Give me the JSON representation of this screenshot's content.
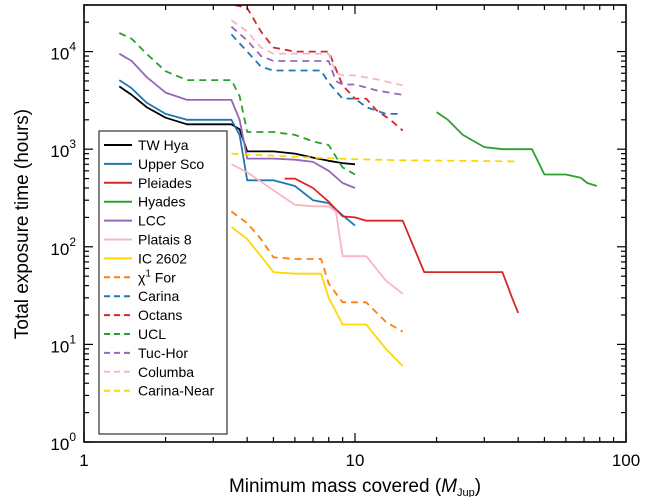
{
  "chart_data": {
    "type": "line",
    "title": "",
    "xlabel": "Minimum mass covered",
    "xlabel_symbol": "M",
    "xlabel_subscript": "Jup",
    "ylabel": "Total exposure time (hours)",
    "x_scale": "log",
    "y_scale": "log",
    "xlim": [
      1,
      100
    ],
    "ylim": [
      1,
      30000
    ],
    "x_ticks": [
      {
        "value": 1,
        "label": "1"
      },
      {
        "value": 10,
        "label": "10"
      },
      {
        "value": 100,
        "label": "100"
      }
    ],
    "y_ticks": [
      {
        "value": 1,
        "base": "10",
        "exp": "0"
      },
      {
        "value": 10,
        "base": "10",
        "exp": "1"
      },
      {
        "value": 100,
        "base": "10",
        "exp": "2"
      },
      {
        "value": 1000,
        "base": "10",
        "exp": "3"
      },
      {
        "value": 10000,
        "base": "10",
        "exp": "4"
      }
    ],
    "grid": false,
    "legend_position": "lower-left",
    "series": [
      {
        "name": "TW Hya",
        "color": "#000000",
        "dash": "solid",
        "points": [
          [
            1.35,
            4400
          ],
          [
            1.5,
            3600
          ],
          [
            1.7,
            2700
          ],
          [
            2.0,
            2100
          ],
          [
            2.4,
            1800
          ],
          [
            3.0,
            1800
          ],
          [
            3.5,
            1800
          ],
          [
            3.75,
            1600
          ],
          [
            4.0,
            950
          ],
          [
            5.0,
            950
          ],
          [
            6.0,
            900
          ],
          [
            7.0,
            820
          ],
          [
            8.0,
            760
          ],
          [
            9.0,
            720
          ],
          [
            10.0,
            700
          ]
        ]
      },
      {
        "name": "Upper Sco",
        "color": "#1f77b4",
        "dash": "solid",
        "points": [
          [
            1.35,
            5100
          ],
          [
            1.5,
            4200
          ],
          [
            1.7,
            3000
          ],
          [
            2.0,
            2300
          ],
          [
            2.4,
            2000
          ],
          [
            3.0,
            2000
          ],
          [
            3.5,
            2000
          ],
          [
            3.75,
            1400
          ],
          [
            4.0,
            480
          ],
          [
            4.5,
            480
          ],
          [
            5.0,
            480
          ],
          [
            6.0,
            420
          ],
          [
            7.0,
            300
          ],
          [
            8.0,
            280
          ],
          [
            9.0,
            210
          ],
          [
            10.0,
            165
          ]
        ]
      },
      {
        "name": "Pleiades",
        "color": "#d62728",
        "dash": "solid",
        "points": [
          [
            5.5,
            500
          ],
          [
            6.0,
            500
          ],
          [
            7.0,
            400
          ],
          [
            8.0,
            290
          ],
          [
            9.0,
            205
          ],
          [
            10.0,
            200
          ],
          [
            11.0,
            185
          ],
          [
            15.0,
            185
          ],
          [
            18.0,
            55
          ],
          [
            30.0,
            55
          ],
          [
            35.0,
            55
          ],
          [
            38.0,
            30
          ],
          [
            40.0,
            21
          ]
        ]
      },
      {
        "name": "Hyades",
        "color": "#2ca02c",
        "dash": "solid",
        "points": [
          [
            20.0,
            2400
          ],
          [
            22.0,
            2000
          ],
          [
            25.0,
            1400
          ],
          [
            30.0,
            1050
          ],
          [
            35.0,
            1000
          ],
          [
            45.0,
            1000
          ],
          [
            50.0,
            550
          ],
          [
            60.0,
            550
          ],
          [
            68.0,
            510
          ],
          [
            72.0,
            450
          ],
          [
            78.0,
            420
          ]
        ]
      },
      {
        "name": "LCC",
        "color": "#9467bd",
        "dash": "solid",
        "points": [
          [
            1.35,
            9500
          ],
          [
            1.5,
            8000
          ],
          [
            1.7,
            5500
          ],
          [
            2.0,
            3800
          ],
          [
            2.4,
            3200
          ],
          [
            3.0,
            3200
          ],
          [
            3.5,
            3200
          ],
          [
            3.75,
            2000
          ],
          [
            4.0,
            800
          ],
          [
            5.0,
            800
          ],
          [
            6.0,
            780
          ],
          [
            7.0,
            740
          ],
          [
            8.0,
            600
          ],
          [
            9.0,
            450
          ],
          [
            10.0,
            400
          ]
        ]
      },
      {
        "name": "Platais 8",
        "color": "#f7b6c2",
        "dash": "solid",
        "points": [
          [
            3.5,
            700
          ],
          [
            4.0,
            580
          ],
          [
            5.0,
            380
          ],
          [
            6.0,
            270
          ],
          [
            7.0,
            260
          ],
          [
            8.0,
            260
          ],
          [
            8.5,
            230
          ],
          [
            9.0,
            80
          ],
          [
            10.0,
            80
          ],
          [
            11.0,
            80
          ],
          [
            13.0,
            45
          ],
          [
            15.0,
            33
          ]
        ]
      },
      {
        "name": "IC 2602",
        "color": "#ffd700",
        "dash": "solid",
        "points": [
          [
            3.5,
            160
          ],
          [
            4.0,
            120
          ],
          [
            4.5,
            80
          ],
          [
            5.0,
            55
          ],
          [
            6.0,
            53
          ],
          [
            7.0,
            53
          ],
          [
            7.5,
            53
          ],
          [
            8.0,
            30
          ],
          [
            9.0,
            16
          ],
          [
            10.0,
            16
          ],
          [
            11.0,
            16
          ],
          [
            13.0,
            9
          ],
          [
            15.0,
            6
          ]
        ]
      },
      {
        "name": "χ¹ For",
        "name_base": "χ",
        "name_sup": "1",
        "name_rest": " For",
        "color": "#ff7f0e",
        "dash": "dashed",
        "points": [
          [
            3.5,
            230
          ],
          [
            4.0,
            175
          ],
          [
            4.5,
            120
          ],
          [
            5.0,
            78
          ],
          [
            6.0,
            75
          ],
          [
            7.0,
            75
          ],
          [
            7.5,
            75
          ],
          [
            8.0,
            42
          ],
          [
            9.0,
            27
          ],
          [
            10.0,
            27
          ],
          [
            11.0,
            27
          ],
          [
            13.0,
            17
          ],
          [
            15.0,
            13.5
          ]
        ]
      },
      {
        "name": "Carina",
        "color": "#1f77b4",
        "dash": "dashed",
        "points": [
          [
            3.5,
            15000
          ],
          [
            4.0,
            10000
          ],
          [
            4.5,
            7000
          ],
          [
            5.0,
            6400
          ],
          [
            6.0,
            6400
          ],
          [
            7.0,
            6400
          ],
          [
            7.5,
            6400
          ],
          [
            8.0,
            4800
          ],
          [
            9.0,
            3300
          ],
          [
            10.0,
            3300
          ],
          [
            11.0,
            2700
          ],
          [
            13.0,
            2300
          ],
          [
            15.0,
            2300
          ]
        ]
      },
      {
        "name": "Octans",
        "color": "#d62728",
        "dash": "dashed",
        "points": [
          [
            3.6,
            30000
          ],
          [
            4.0,
            28000
          ],
          [
            4.5,
            16000
          ],
          [
            5.0,
            11000
          ],
          [
            6.0,
            10000
          ],
          [
            7.0,
            10000
          ],
          [
            8.0,
            10000
          ],
          [
            9.0,
            4500
          ],
          [
            10.0,
            3300
          ],
          [
            11.0,
            3300
          ],
          [
            12.0,
            2500
          ],
          [
            13.5,
            2000
          ],
          [
            15.0,
            1550
          ]
        ]
      },
      {
        "name": "UCL",
        "color": "#2ca02c",
        "dash": "dashed",
        "points": [
          [
            1.35,
            15500
          ],
          [
            1.5,
            13500
          ],
          [
            1.7,
            9500
          ],
          [
            2.0,
            6300
          ],
          [
            2.4,
            5100
          ],
          [
            3.0,
            5100
          ],
          [
            3.5,
            5100
          ],
          [
            3.75,
            3500
          ],
          [
            4.0,
            1500
          ],
          [
            5.0,
            1500
          ],
          [
            6.0,
            1400
          ],
          [
            7.0,
            1200
          ],
          [
            8.0,
            1100
          ],
          [
            9.0,
            650
          ],
          [
            10.0,
            550
          ]
        ]
      },
      {
        "name": "Tuc-Hor",
        "color": "#9467bd",
        "dash": "dashed",
        "points": [
          [
            3.5,
            18000
          ],
          [
            4.0,
            13000
          ],
          [
            4.5,
            9000
          ],
          [
            5.0,
            8000
          ],
          [
            6.0,
            8000
          ],
          [
            7.0,
            8000
          ],
          [
            8.0,
            8000
          ],
          [
            8.5,
            5000
          ],
          [
            9.0,
            4600
          ],
          [
            10.0,
            4600
          ],
          [
            12.0,
            4000
          ],
          [
            15.0,
            3600
          ]
        ]
      },
      {
        "name": "Columba",
        "color": "#f7b6c2",
        "dash": "dashed",
        "points": [
          [
            3.5,
            21000
          ],
          [
            4.0,
            16000
          ],
          [
            4.5,
            11000
          ],
          [
            5.0,
            9500
          ],
          [
            6.0,
            9500
          ],
          [
            7.0,
            9500
          ],
          [
            8.0,
            9500
          ],
          [
            8.5,
            6000
          ],
          [
            9.0,
            5700
          ],
          [
            10.0,
            5700
          ],
          [
            12.0,
            5200
          ],
          [
            15.0,
            4500
          ]
        ]
      },
      {
        "name": "Carina-Near",
        "color": "#ffd700",
        "dash": "dashed",
        "points": [
          [
            3.5,
            900
          ],
          [
            4.0,
            880
          ],
          [
            5.0,
            860
          ],
          [
            7.0,
            820
          ],
          [
            10.0,
            790
          ],
          [
            15.0,
            770
          ],
          [
            25.0,
            760
          ],
          [
            40.0,
            750
          ]
        ]
      }
    ]
  }
}
